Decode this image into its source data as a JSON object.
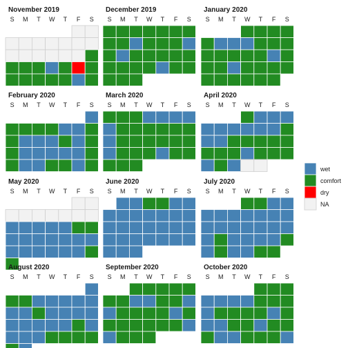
{
  "chart_data": {
    "type": "heatmap",
    "weekday_labels": [
      "S",
      "M",
      "T",
      "W",
      "T",
      "F",
      "S"
    ],
    "categories": [
      {
        "label": "wet",
        "color": "#4682B4"
      },
      {
        "label": "comfort",
        "color": "#228B22"
      },
      {
        "label": "dry",
        "color": "#FF0000"
      },
      {
        "label": "NA",
        "color": "#F2F2F2"
      }
    ],
    "months": [
      {
        "title": "November 2019",
        "start_weekday": 5,
        "values": [
          "NA",
          "NA",
          "NA",
          "NA",
          "NA",
          "NA",
          "NA",
          "NA",
          "NA",
          "NA",
          "NA",
          "NA",
          "NA",
          "NA",
          "NA",
          "comfort",
          "comfort",
          "comfort",
          "comfort",
          "wet",
          "comfort",
          "dry",
          "comfort",
          "comfort",
          "comfort",
          "comfort",
          "comfort",
          "comfort",
          "wet",
          "comfort"
        ]
      },
      {
        "title": "December 2019",
        "start_weekday": 0,
        "values": [
          "comfort",
          "comfort",
          "comfort",
          "comfort",
          "comfort",
          "comfort",
          "comfort",
          "comfort",
          "comfort",
          "wet",
          "comfort",
          "comfort",
          "comfort",
          "wet",
          "comfort",
          "wet",
          "comfort",
          "comfort",
          "comfort",
          "comfort",
          "comfort",
          "comfort",
          "comfort",
          "comfort",
          "comfort",
          "wet",
          "comfort",
          "comfort",
          "comfort",
          "comfort",
          "comfort"
        ]
      },
      {
        "title": "January 2020",
        "start_weekday": 3,
        "values": [
          "comfort",
          "comfort",
          "comfort",
          "comfort",
          "comfort",
          "wet",
          "wet",
          "wet",
          "comfort",
          "comfort",
          "comfort",
          "comfort",
          "comfort",
          "comfort",
          "comfort",
          "comfort",
          "wet",
          "comfort",
          "comfort",
          "comfort",
          "wet",
          "comfort",
          "comfort",
          "comfort",
          "comfort",
          "comfort",
          "comfort",
          "comfort",
          "comfort",
          "comfort",
          "comfort"
        ]
      },
      {
        "title": "February 2020",
        "start_weekday": 6,
        "values": [
          "wet",
          "comfort",
          "comfort",
          "comfort",
          "comfort",
          "wet",
          "wet",
          "comfort",
          "comfort",
          "wet",
          "wet",
          "wet",
          "comfort",
          "wet",
          "comfort",
          "comfort",
          "wet",
          "wet",
          "wet",
          "wet",
          "wet",
          "comfort",
          "comfort",
          "wet",
          "wet",
          "comfort",
          "comfort",
          "wet",
          "comfort"
        ]
      },
      {
        "title": "March 2020",
        "start_weekday": 0,
        "values": [
          "comfort",
          "comfort",
          "comfort",
          "wet",
          "wet",
          "wet",
          "wet",
          "wet",
          "comfort",
          "comfort",
          "comfort",
          "comfort",
          "comfort",
          "comfort",
          "wet",
          "comfort",
          "comfort",
          "comfort",
          "comfort",
          "comfort",
          "comfort",
          "wet",
          "comfort",
          "comfort",
          "comfort",
          "wet",
          "comfort",
          "comfort",
          "comfort",
          "comfort",
          "comfort"
        ]
      },
      {
        "title": "April 2020",
        "start_weekday": 3,
        "values": [
          "comfort",
          "wet",
          "wet",
          "wet",
          "wet",
          "wet",
          "wet",
          "wet",
          "wet",
          "wet",
          "comfort",
          "wet",
          "wet",
          "comfort",
          "comfort",
          "comfort",
          "comfort",
          "comfort",
          "comfort",
          "comfort",
          "comfort",
          "wet",
          "comfort",
          "comfort",
          "comfort",
          "wet",
          "comfort",
          "wet",
          "NA",
          "NA"
        ]
      },
      {
        "title": "May 2020",
        "start_weekday": 5,
        "values": [
          "NA",
          "NA",
          "NA",
          "NA",
          "NA",
          "NA",
          "NA",
          "NA",
          "NA",
          "wet",
          "wet",
          "wet",
          "wet",
          "wet",
          "comfort",
          "comfort",
          "wet",
          "wet",
          "wet",
          "wet",
          "wet",
          "wet",
          "wet",
          "wet",
          "wet",
          "wet",
          "wet",
          "wet",
          "wet",
          "comfort",
          "comfort"
        ]
      },
      {
        "title": "June 2020",
        "start_weekday": 1,
        "values": [
          "wet",
          "wet",
          "comfort",
          "comfort",
          "wet",
          "wet",
          "wet",
          "wet",
          "wet",
          "wet",
          "wet",
          "wet",
          "wet",
          "wet",
          "wet",
          "wet",
          "wet",
          "wet",
          "wet",
          "wet",
          "wet",
          "wet",
          "wet",
          "wet",
          "wet",
          "wet",
          "wet",
          "wet",
          "wet",
          "wet"
        ]
      },
      {
        "title": "July 2020",
        "start_weekday": 3,
        "values": [
          "comfort",
          "comfort",
          "wet",
          "wet",
          "wet",
          "wet",
          "wet",
          "wet",
          "wet",
          "wet",
          "wet",
          "wet",
          "wet",
          "wet",
          "wet",
          "wet",
          "wet",
          "wet",
          "wet",
          "comfort",
          "wet",
          "wet",
          "wet",
          "wet",
          "comfort",
          "wet",
          "comfort",
          "wet",
          "wet",
          "comfort",
          "comfort"
        ]
      },
      {
        "title": "August 2020",
        "start_weekday": 6,
        "values": [
          "wet",
          "comfort",
          "comfort",
          "wet",
          "wet",
          "wet",
          "wet",
          "wet",
          "wet",
          "wet",
          "comfort",
          "wet",
          "wet",
          "wet",
          "wet",
          "wet",
          "wet",
          "wet",
          "wet",
          "wet",
          "comfort",
          "wet",
          "wet",
          "wet",
          "wet",
          "comfort",
          "comfort",
          "comfort",
          "comfort",
          "comfort",
          "wet"
        ]
      },
      {
        "title": "September 2020",
        "start_weekday": 2,
        "values": [
          "comfort",
          "comfort",
          "comfort",
          "comfort",
          "comfort",
          "comfort",
          "comfort",
          "wet",
          "wet",
          "comfort",
          "comfort",
          "wet",
          "wet",
          "comfort",
          "comfort",
          "comfort",
          "comfort",
          "wet",
          "comfort",
          "comfort",
          "comfort",
          "comfort",
          "comfort",
          "comfort",
          "comfort",
          "wet",
          "wet",
          "comfort",
          "comfort",
          "comfort"
        ]
      },
      {
        "title": "October 2020",
        "start_weekday": 4,
        "values": [
          "comfort",
          "comfort",
          "comfort",
          "wet",
          "wet",
          "wet",
          "wet",
          "comfort",
          "comfort",
          "comfort",
          "wet",
          "comfort",
          "comfort",
          "comfort",
          "comfort",
          "wet",
          "comfort",
          "wet",
          "wet",
          "comfort",
          "comfort",
          "wet",
          "comfort",
          "comfort",
          "comfort",
          "wet",
          "wet",
          "comfort",
          "comfort",
          "comfort",
          "wet"
        ]
      }
    ]
  }
}
